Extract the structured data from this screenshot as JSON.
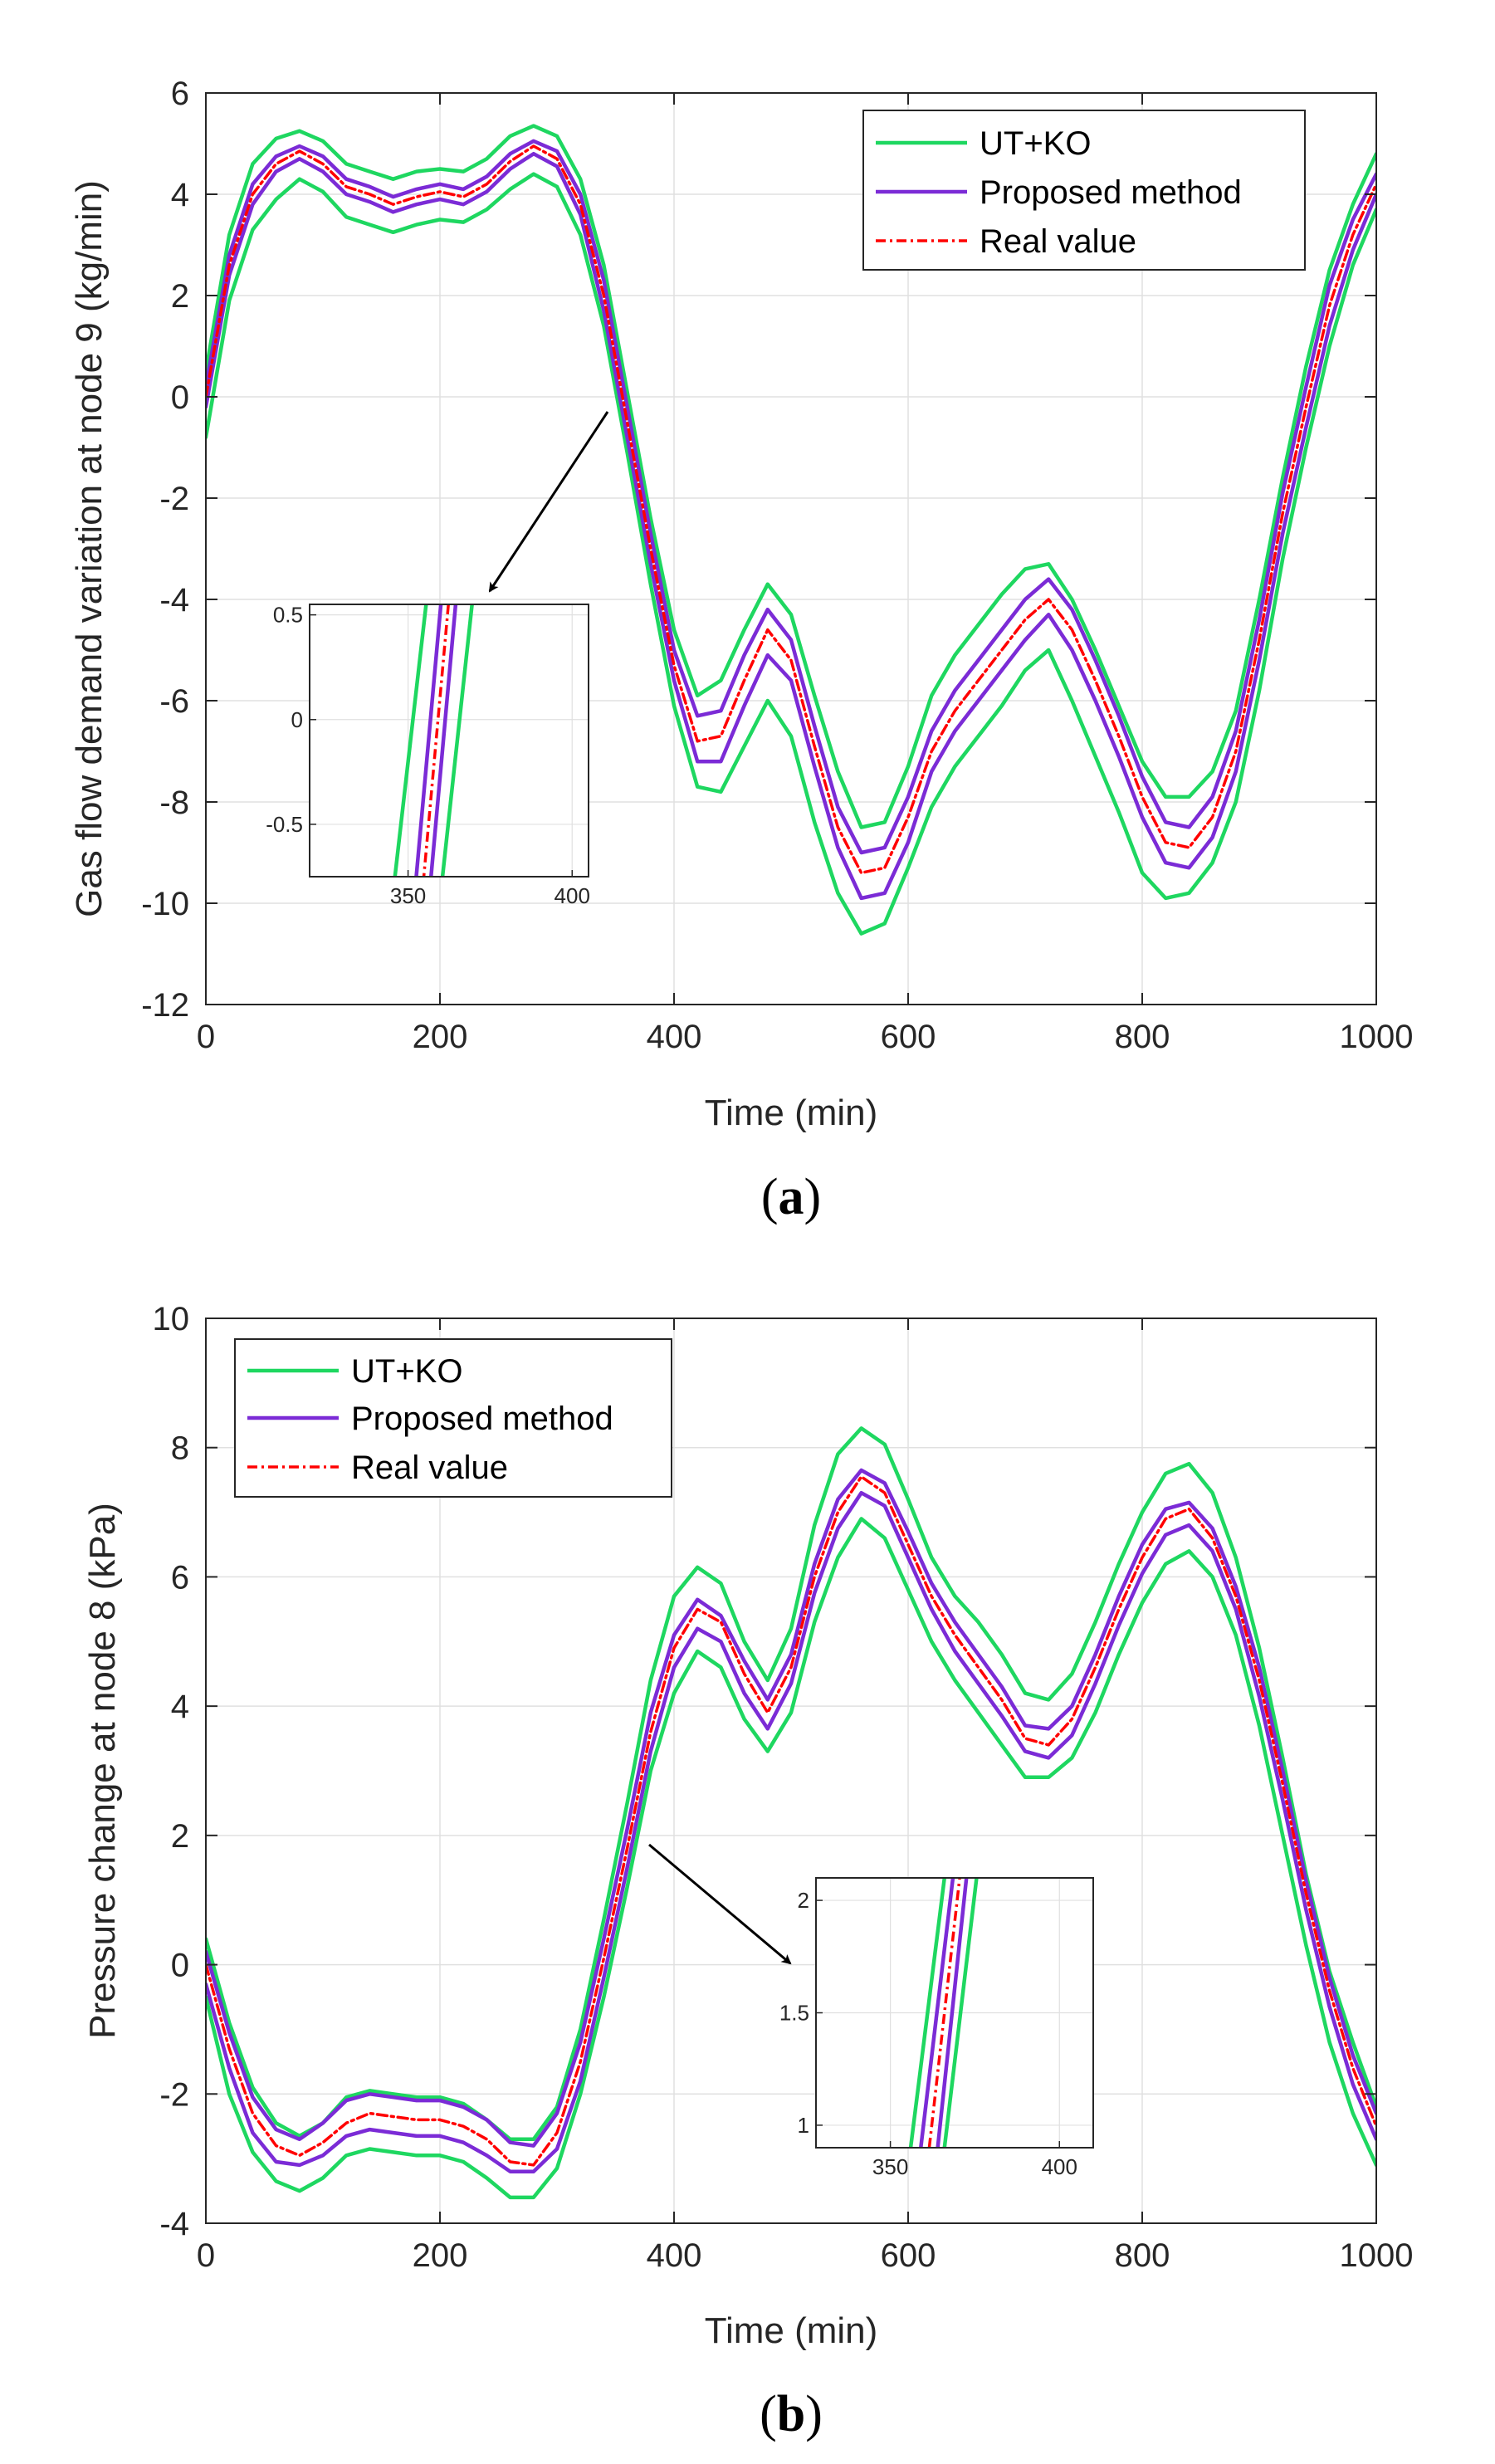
{
  "figure": {
    "colors": {
      "ut_ko": "#1ed760",
      "proposed": "#7b2bd6",
      "real": "#ff0000",
      "grid": "#e0e0e0",
      "axis": "#262626"
    }
  },
  "chart_data": [
    {
      "id": "a",
      "type": "line",
      "caption": {
        "open": "(",
        "letter": "a",
        "close": ")"
      },
      "title": "",
      "xlabel": "Time (min)",
      "ylabel": "Gas flow demand variation at node 9 (kg/min)",
      "xlim": [
        0,
        1000
      ],
      "ylim": [
        -12,
        6
      ],
      "xticks": [
        0,
        200,
        400,
        600,
        800,
        1000
      ],
      "yticks": [
        -12,
        -10,
        -8,
        -6,
        -4,
        -2,
        0,
        2,
        4,
        6
      ],
      "grid": true,
      "legend": {
        "position": "top-right",
        "entries": [
          "UT+KO",
          "Proposed method",
          "Real value"
        ]
      },
      "x": [
        0,
        20,
        40,
        60,
        80,
        100,
        120,
        140,
        160,
        180,
        200,
        220,
        240,
        260,
        280,
        300,
        320,
        340,
        360,
        380,
        400,
        420,
        440,
        460,
        480,
        500,
        520,
        540,
        560,
        580,
        600,
        620,
        640,
        660,
        680,
        700,
        720,
        740,
        760,
        780,
        800,
        820,
        840,
        860,
        880,
        900,
        920,
        940,
        960,
        980,
        1000
      ],
      "series": [
        {
          "name": "Real value",
          "values": [
            0.0,
            2.6,
            4.0,
            4.6,
            4.85,
            4.6,
            4.15,
            4.0,
            3.8,
            3.95,
            4.05,
            3.95,
            4.2,
            4.65,
            4.95,
            4.7,
            3.8,
            2.0,
            -0.5,
            -3.0,
            -5.3,
            -6.8,
            -6.7,
            -5.6,
            -4.6,
            -5.2,
            -6.9,
            -8.5,
            -9.4,
            -9.3,
            -8.3,
            -7.0,
            -6.2,
            -5.6,
            -5.0,
            -4.4,
            -4.0,
            -4.6,
            -5.6,
            -6.7,
            -7.9,
            -8.8,
            -8.9,
            -8.3,
            -7.0,
            -4.8,
            -2.3,
            -0.2,
            1.8,
            3.2,
            4.2
          ]
        },
        {
          "name": "Proposed method (upper)",
          "values": [
            0.2,
            2.8,
            4.2,
            4.75,
            4.95,
            4.75,
            4.3,
            4.15,
            3.95,
            4.1,
            4.2,
            4.1,
            4.35,
            4.8,
            5.05,
            4.85,
            4.0,
            2.3,
            -0.2,
            -2.7,
            -5.0,
            -6.3,
            -6.2,
            -5.1,
            -4.2,
            -4.8,
            -6.5,
            -8.1,
            -9.0,
            -8.9,
            -7.9,
            -6.6,
            -5.8,
            -5.2,
            -4.6,
            -4.0,
            -3.6,
            -4.2,
            -5.2,
            -6.3,
            -7.5,
            -8.4,
            -8.5,
            -7.9,
            -6.6,
            -4.4,
            -1.9,
            0.2,
            2.2,
            3.5,
            4.4
          ]
        },
        {
          "name": "Proposed method (lower)",
          "values": [
            -0.2,
            2.4,
            3.8,
            4.45,
            4.7,
            4.45,
            4.0,
            3.85,
            3.65,
            3.8,
            3.9,
            3.8,
            4.05,
            4.5,
            4.8,
            4.55,
            3.6,
            1.7,
            -0.8,
            -3.3,
            -5.6,
            -7.2,
            -7.2,
            -6.1,
            -5.1,
            -5.6,
            -7.3,
            -8.9,
            -9.9,
            -9.8,
            -8.8,
            -7.4,
            -6.6,
            -6.0,
            -5.4,
            -4.8,
            -4.3,
            -5.0,
            -6.0,
            -7.1,
            -8.3,
            -9.2,
            -9.3,
            -8.7,
            -7.4,
            -5.2,
            -2.7,
            -0.6,
            1.4,
            2.9,
            4.0
          ]
        },
        {
          "name": "UT+KO (upper)",
          "values": [
            0.5,
            3.2,
            4.6,
            5.1,
            5.25,
            5.05,
            4.6,
            4.45,
            4.3,
            4.45,
            4.5,
            4.45,
            4.7,
            5.15,
            5.35,
            5.15,
            4.3,
            2.6,
            0.1,
            -2.4,
            -4.6,
            -5.9,
            -5.6,
            -4.6,
            -3.7,
            -4.3,
            -5.9,
            -7.4,
            -8.5,
            -8.4,
            -7.3,
            -5.9,
            -5.1,
            -4.5,
            -3.9,
            -3.4,
            -3.3,
            -4.0,
            -5.0,
            -6.1,
            -7.2,
            -7.9,
            -7.9,
            -7.4,
            -6.2,
            -4.0,
            -1.6,
            0.6,
            2.5,
            3.8,
            4.8
          ]
        },
        {
          "name": "UT+KO (lower)",
          "values": [
            -0.8,
            1.9,
            3.3,
            3.9,
            4.3,
            4.05,
            3.55,
            3.4,
            3.25,
            3.4,
            3.5,
            3.45,
            3.7,
            4.1,
            4.4,
            4.15,
            3.2,
            1.4,
            -1.1,
            -3.7,
            -6.1,
            -7.7,
            -7.8,
            -6.9,
            -6.0,
            -6.7,
            -8.4,
            -9.8,
            -10.6,
            -10.4,
            -9.3,
            -8.1,
            -7.3,
            -6.7,
            -6.1,
            -5.4,
            -5.0,
            -6.0,
            -7.1,
            -8.2,
            -9.4,
            -9.9,
            -9.8,
            -9.2,
            -8.0,
            -5.8,
            -3.2,
            -1.0,
            1.0,
            2.6,
            3.7
          ]
        }
      ],
      "inset": {
        "xlim": [
          320,
          405
        ],
        "ylim": [
          -0.75,
          0.55
        ],
        "xticks": [
          350,
          400
        ],
        "yticks": [
          -0.5,
          0,
          0.5
        ],
        "ytick_labels": [
          "-0.5",
          "0",
          "0.5"
        ],
        "annotation_target": [
          350,
          0
        ],
        "series": [
          {
            "name": "UT+KO",
            "line": [
              [
                355.5,
                0.55
              ],
              [
                346.0,
                -0.75
              ]
            ]
          },
          {
            "name": "UT+KO",
            "line": [
              [
                369.5,
                0.55
              ],
              [
                360.5,
                -0.75
              ]
            ]
          },
          {
            "name": "Proposed method",
            "line": [
              [
                360.0,
                0.55
              ],
              [
                352.5,
                -0.75
              ]
            ]
          },
          {
            "name": "Proposed method",
            "line": [
              [
                364.5,
                0.55
              ],
              [
                357.0,
                -0.75
              ]
            ]
          },
          {
            "name": "Real value",
            "line": [
              [
                362.3,
                0.55
              ],
              [
                354.8,
                -0.75
              ]
            ]
          }
        ]
      }
    },
    {
      "id": "b",
      "type": "line",
      "caption": {
        "open": "(",
        "letter": "b",
        "close": ")"
      },
      "title": "",
      "xlabel": "Time (min)",
      "ylabel": "Pressure change at node 8 (kPa)",
      "xlim": [
        0,
        1000
      ],
      "ylim": [
        -4,
        10
      ],
      "xticks": [
        0,
        200,
        400,
        600,
        800,
        1000
      ],
      "yticks": [
        -4,
        -2,
        0,
        2,
        4,
        6,
        8,
        10
      ],
      "grid": true,
      "legend": {
        "position": "top-left",
        "entries": [
          "UT+KO",
          "Proposed method",
          "Real value"
        ]
      },
      "x": [
        0,
        20,
        40,
        60,
        80,
        100,
        120,
        140,
        160,
        180,
        200,
        220,
        240,
        260,
        280,
        300,
        320,
        340,
        360,
        380,
        400,
        420,
        440,
        460,
        480,
        500,
        520,
        540,
        560,
        580,
        600,
        620,
        640,
        660,
        680,
        700,
        720,
        740,
        760,
        780,
        800,
        820,
        840,
        860,
        880,
        900,
        920,
        940,
        960,
        980,
        1000
      ],
      "series": [
        {
          "name": "Real value",
          "values": [
            0.0,
            -1.3,
            -2.3,
            -2.8,
            -2.95,
            -2.75,
            -2.45,
            -2.3,
            -2.35,
            -2.4,
            -2.4,
            -2.5,
            -2.7,
            -3.05,
            -3.1,
            -2.6,
            -1.5,
            0.1,
            1.8,
            3.6,
            4.9,
            5.5,
            5.3,
            4.5,
            3.9,
            4.6,
            6.0,
            7.0,
            7.55,
            7.3,
            6.5,
            5.7,
            5.1,
            4.6,
            4.1,
            3.5,
            3.4,
            3.8,
            4.6,
            5.5,
            6.3,
            6.9,
            7.05,
            6.6,
            5.7,
            4.4,
            2.8,
            1.1,
            -0.4,
            -1.6,
            -2.5
          ]
        },
        {
          "name": "Proposed method (upper)",
          "values": [
            0.2,
            -1.05,
            -2.05,
            -2.55,
            -2.7,
            -2.45,
            -2.1,
            -2.0,
            -2.05,
            -2.1,
            -2.1,
            -2.2,
            -2.4,
            -2.75,
            -2.8,
            -2.3,
            -1.2,
            0.4,
            2.1,
            3.9,
            5.1,
            5.65,
            5.4,
            4.7,
            4.1,
            4.8,
            6.2,
            7.2,
            7.65,
            7.45,
            6.7,
            5.9,
            5.3,
            4.8,
            4.3,
            3.7,
            3.65,
            4.0,
            4.8,
            5.7,
            6.5,
            7.05,
            7.15,
            6.75,
            5.85,
            4.6,
            3.0,
            1.3,
            -0.2,
            -1.4,
            -2.3
          ]
        },
        {
          "name": "Proposed method (lower)",
          "values": [
            -0.3,
            -1.6,
            -2.6,
            -3.05,
            -3.1,
            -2.95,
            -2.65,
            -2.55,
            -2.6,
            -2.65,
            -2.65,
            -2.75,
            -2.95,
            -3.2,
            -3.2,
            -2.85,
            -1.8,
            -0.2,
            1.5,
            3.3,
            4.6,
            5.2,
            5.0,
            4.2,
            3.65,
            4.35,
            5.75,
            6.75,
            7.3,
            7.1,
            6.3,
            5.5,
            4.85,
            4.35,
            3.85,
            3.3,
            3.2,
            3.55,
            4.35,
            5.25,
            6.05,
            6.65,
            6.8,
            6.4,
            5.5,
            4.15,
            2.55,
            0.85,
            -0.65,
            -1.85,
            -2.7
          ]
        },
        {
          "name": "UT+KO (upper)",
          "values": [
            0.4,
            -0.9,
            -1.9,
            -2.45,
            -2.65,
            -2.45,
            -2.05,
            -1.95,
            -2.0,
            -2.05,
            -2.05,
            -2.15,
            -2.4,
            -2.7,
            -2.7,
            -2.2,
            -1.0,
            0.7,
            2.5,
            4.4,
            5.7,
            6.15,
            5.9,
            5.0,
            4.4,
            5.2,
            6.8,
            7.9,
            8.3,
            8.05,
            7.2,
            6.3,
            5.7,
            5.3,
            4.8,
            4.2,
            4.1,
            4.5,
            5.3,
            6.2,
            7.0,
            7.6,
            7.75,
            7.3,
            6.3,
            4.9,
            3.2,
            1.4,
            -0.1,
            -1.2,
            -2.2
          ]
        },
        {
          "name": "UT+KO (lower)",
          "values": [
            -0.5,
            -2.0,
            -2.9,
            -3.35,
            -3.5,
            -3.3,
            -2.95,
            -2.85,
            -2.9,
            -2.95,
            -2.95,
            -3.05,
            -3.3,
            -3.6,
            -3.6,
            -3.15,
            -2.0,
            -0.5,
            1.2,
            3.0,
            4.2,
            4.85,
            4.6,
            3.8,
            3.3,
            3.9,
            5.3,
            6.3,
            6.9,
            6.6,
            5.8,
            5.0,
            4.4,
            3.9,
            3.4,
            2.9,
            2.9,
            3.2,
            3.9,
            4.8,
            5.6,
            6.2,
            6.4,
            6.0,
            5.1,
            3.7,
            2.0,
            0.3,
            -1.2,
            -2.3,
            -3.1
          ]
        }
      ],
      "inset": {
        "xlim": [
          328,
          410
        ],
        "ylim": [
          0.9,
          2.1
        ],
        "xticks": [
          350,
          400
        ],
        "yticks": [
          1,
          1.5,
          2
        ],
        "ytick_labels": [
          "1",
          "1.5",
          "2"
        ],
        "annotation_target": [
          375,
          1.5
        ],
        "series": [
          {
            "name": "UT+KO",
            "line": [
              [
                356.0,
                0.9
              ],
              [
                366.0,
                2.1
              ]
            ]
          },
          {
            "name": "UT+KO",
            "line": [
              [
                366.0,
                0.9
              ],
              [
                375.5,
                2.1
              ]
            ]
          },
          {
            "name": "Proposed method",
            "line": [
              [
                359.0,
                0.9
              ],
              [
                368.5,
                2.1
              ]
            ]
          },
          {
            "name": "Proposed method",
            "line": [
              [
                364.0,
                0.9
              ],
              [
                372.5,
                2.1
              ]
            ]
          },
          {
            "name": "Real value",
            "line": [
              [
                361.5,
                0.9
              ],
              [
                370.5,
                2.1
              ]
            ]
          }
        ]
      }
    }
  ]
}
